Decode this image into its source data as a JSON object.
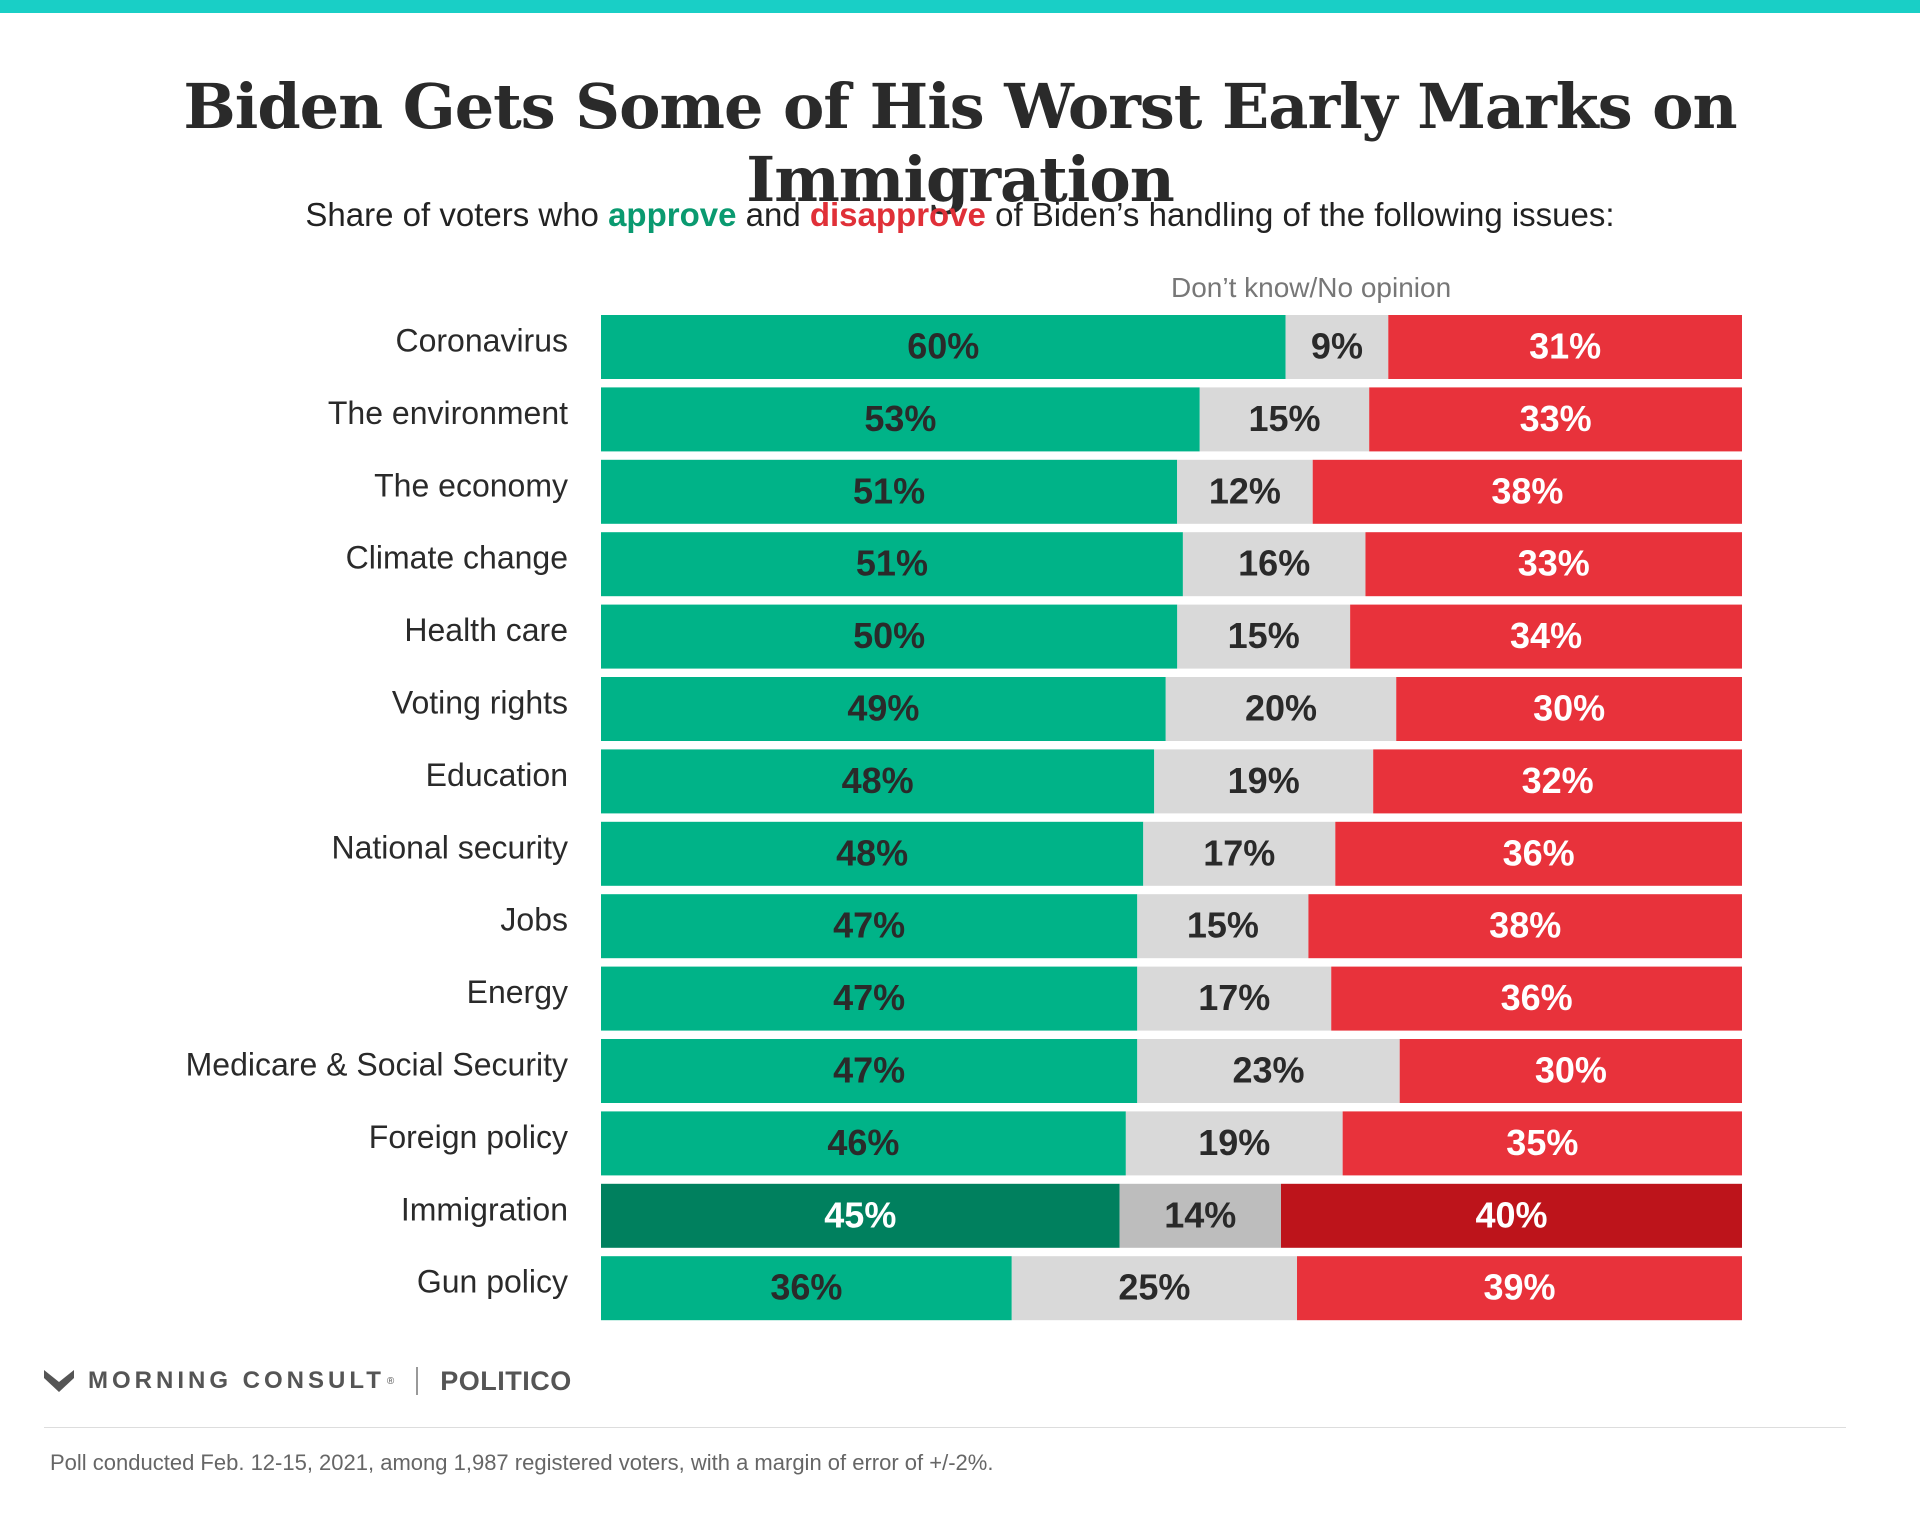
{
  "title": "Biden Gets Some of His Worst Early Marks on Immigration",
  "subtitle": {
    "prefix": "Share of voters who ",
    "approve": "approve",
    "middle": " and ",
    "disapprove": "disapprove",
    "suffix": " of Biden’s handling of the following issues:"
  },
  "dont_know_label": "Don’t know/No opinion",
  "colors": {
    "approve": "#00b388",
    "dont_know": "#d9d9d9",
    "disapprove": "#e8323b",
    "approve_highlight": "#00805e",
    "dont_know_highlight": "#bdbdbd",
    "disapprove_highlight": "#bd141b",
    "label_dark": "#2a2a2a",
    "label_light": "#ffffff"
  },
  "chart_data": {
    "type": "bar",
    "stacked": true,
    "orientation": "horizontal",
    "percent_scale": true,
    "highlight_category": "Immigration",
    "categories": [
      "Coronavirus",
      "The environment",
      "The economy",
      "Climate change",
      "Health care",
      "Voting rights",
      "Education",
      "National security",
      "Jobs",
      "Energy",
      "Medicare & Social Security",
      "Foreign policy",
      "Immigration",
      "Gun policy"
    ],
    "series": [
      {
        "name": "approve",
        "values": [
          60,
          53,
          51,
          51,
          50,
          49,
          48,
          48,
          47,
          47,
          47,
          46,
          45,
          36
        ]
      },
      {
        "name": "Don’t know/No opinion",
        "values": [
          9,
          15,
          12,
          16,
          15,
          20,
          19,
          17,
          15,
          17,
          23,
          19,
          14,
          25
        ]
      },
      {
        "name": "disapprove",
        "values": [
          31,
          33,
          38,
          33,
          34,
          30,
          32,
          36,
          38,
          36,
          30,
          35,
          40,
          39
        ]
      }
    ]
  },
  "footer": {
    "brand1": "MORNING CONSULT",
    "brand1_mark": "®",
    "brand2": "POLITICO",
    "note": "Poll conducted Feb. 12-15, 2021, among 1,987 registered voters, with a margin of error of +/-2%."
  }
}
